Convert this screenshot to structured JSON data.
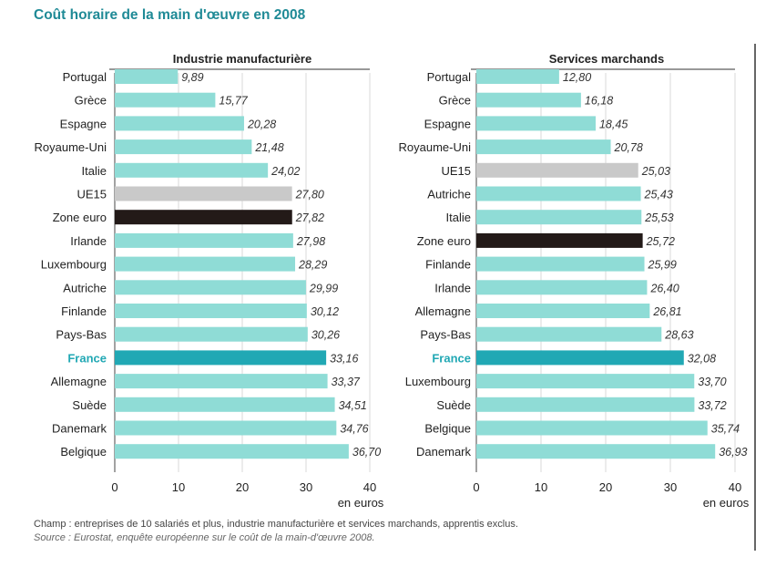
{
  "title": "Coût horaire de la main d'œuvre en 2008",
  "notes": {
    "champ": "Champ : entreprises de 10 salariés et plus, industrie manufacturière et services marchands, apprentis exclus.",
    "source": "Source : Eurostat, enquête européenne sur le coût de la main-d'œuvre 2008."
  },
  "colors": {
    "default": "#8fdcd6",
    "ue15": "#c9c9c9",
    "zone_euro": "#231a18",
    "france": "#21a8b4",
    "france_label": "#21a8b4",
    "grid": "#d8d8d8",
    "divider": "#333333"
  },
  "chart_data": [
    {
      "type": "bar",
      "orientation": "horizontal",
      "title": "Industrie manufacturière",
      "xlabel": "en euros",
      "xlim": [
        0,
        40
      ],
      "xticks": [
        0,
        10,
        20,
        30,
        40
      ],
      "grid": true,
      "categories": [
        "Portugal",
        "Grèce",
        "Espagne",
        "Royaume-Uni",
        "Italie",
        "UE15",
        "Zone euro",
        "Irlande",
        "Luxembourg",
        "Autriche",
        "Finlande",
        "Pays-Bas",
        "France",
        "Allemagne",
        "Suède",
        "Danemark",
        "Belgique"
      ],
      "values": [
        9.89,
        15.77,
        20.28,
        21.48,
        24.02,
        27.8,
        27.82,
        27.98,
        28.29,
        29.99,
        30.12,
        30.26,
        33.16,
        33.37,
        34.51,
        34.76,
        36.7
      ],
      "value_labels": [
        "9,89",
        "15,77",
        "20,28",
        "21,48",
        "24,02",
        "27,80",
        "27,82",
        "27,98",
        "28,29",
        "29,99",
        "30,12",
        "30,26",
        "33,16",
        "33,37",
        "34,51",
        "34,76",
        "36,70"
      ]
    },
    {
      "type": "bar",
      "orientation": "horizontal",
      "title": "Services marchands",
      "xlabel": "en euros",
      "xlim": [
        0,
        40
      ],
      "xticks": [
        0,
        10,
        20,
        30,
        40
      ],
      "grid": true,
      "categories": [
        "Portugal",
        "Grèce",
        "Espagne",
        "Royaume-Uni",
        "UE15",
        "Autriche",
        "Italie",
        "Zone euro",
        "Finlande",
        "Irlande",
        "Allemagne",
        "Pays-Bas",
        "France",
        "Luxembourg",
        "Suède",
        "Belgique",
        "Danemark"
      ],
      "values": [
        12.8,
        16.18,
        18.45,
        20.78,
        25.03,
        25.43,
        25.53,
        25.72,
        25.99,
        26.4,
        26.81,
        28.63,
        32.08,
        33.7,
        33.72,
        35.74,
        36.93
      ],
      "value_labels": [
        "12,80",
        "16,18",
        "18,45",
        "20,78",
        "25,03",
        "25,43",
        "25,53",
        "25,72",
        "25,99",
        "26,40",
        "26,81",
        "28,63",
        "32,08",
        "33,70",
        "33,72",
        "35,74",
        "36,93"
      ]
    }
  ]
}
